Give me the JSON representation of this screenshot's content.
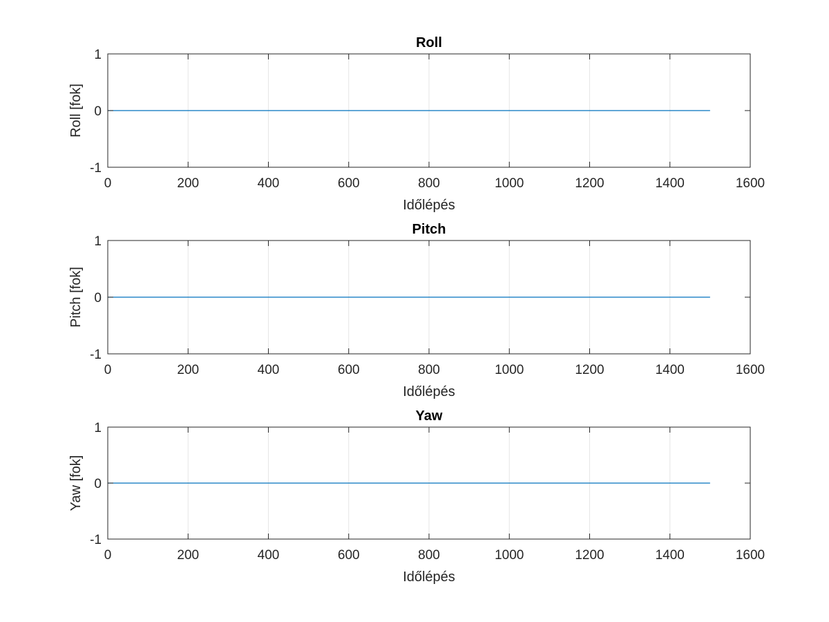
{
  "chart_data": [
    {
      "type": "line",
      "title": "Roll",
      "xlabel": "Időlépés",
      "ylabel": "Roll [fok]",
      "xlim": [
        0,
        1600
      ],
      "ylim": [
        -1,
        1
      ],
      "xticks": [
        "0",
        "200",
        "400",
        "600",
        "800",
        "1000",
        "1200",
        "1400",
        "1600"
      ],
      "yticks": [
        "-1",
        "0",
        "1"
      ],
      "grid": "x",
      "series": [
        {
          "color": "#0072BD",
          "x": [
            0,
            1500
          ],
          "y": [
            0,
            0
          ]
        }
      ]
    },
    {
      "type": "line",
      "title": "Pitch",
      "xlabel": "Időlépés",
      "ylabel": "Pitch [fok]",
      "xlim": [
        0,
        1600
      ],
      "ylim": [
        -1,
        1
      ],
      "xticks": [
        "0",
        "200",
        "400",
        "600",
        "800",
        "1000",
        "1200",
        "1400",
        "1600"
      ],
      "yticks": [
        "-1",
        "0",
        "1"
      ],
      "grid": "x",
      "series": [
        {
          "color": "#0072BD",
          "x": [
            0,
            1500
          ],
          "y": [
            0,
            0
          ]
        }
      ]
    },
    {
      "type": "line",
      "title": "Yaw",
      "xlabel": "Időlépés",
      "ylabel": "Yaw [fok]",
      "xlim": [
        0,
        1600
      ],
      "ylim": [
        -1,
        1
      ],
      "xticks": [
        "0",
        "200",
        "400",
        "600",
        "800",
        "1000",
        "1200",
        "1400",
        "1600"
      ],
      "yticks": [
        "-1",
        "0",
        "1"
      ],
      "grid": "x",
      "series": [
        {
          "color": "#0072BD",
          "x": [
            0,
            1500
          ],
          "y": [
            0,
            0
          ]
        }
      ]
    }
  ]
}
